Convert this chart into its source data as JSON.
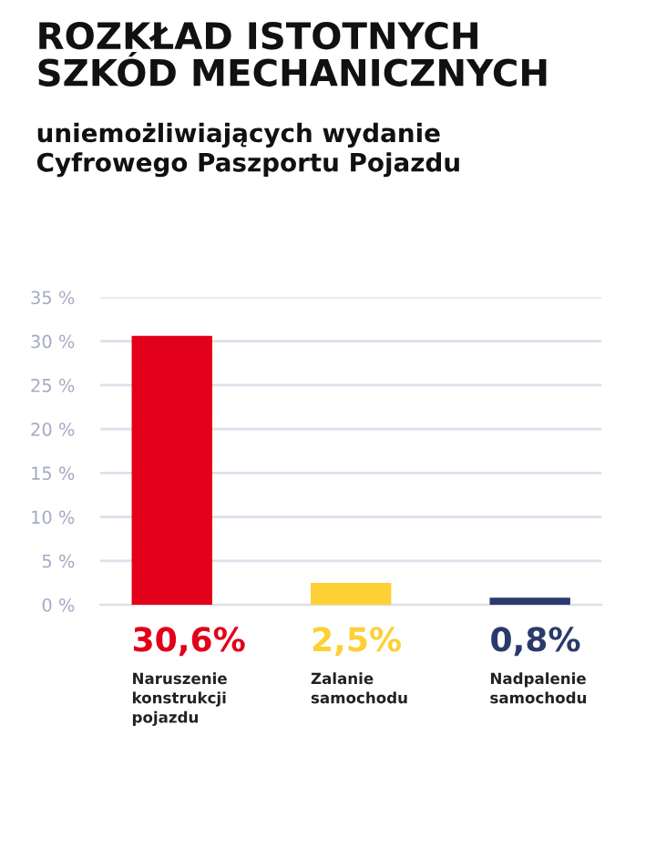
{
  "chart_data": {
    "type": "bar",
    "title": "ROZKŁAD ISTOTNYCH\nSZKÓD MECHANICZNYCH",
    "subtitle": "uniemożliwiających wydanie\nCyfrowego Paszportu Pojazdu",
    "categories": [
      "Naruszenie\nkonstrukcji\npojazdu",
      "Zalanie\nsamochodu",
      "Nadpalenie\nsamochodu"
    ],
    "values": [
      30.6,
      2.5,
      0.8
    ],
    "colors": [
      "#e2001a",
      "#fdd035",
      "#2b3a6b"
    ],
    "value_labels": [
      "30,6%",
      "2,5%",
      "0,8%"
    ],
    "ylim": [
      0,
      35
    ],
    "yticks": [
      {
        "value": 0,
        "label": "0 %"
      },
      {
        "value": 5,
        "label": "5 %"
      },
      {
        "value": 10,
        "label": "10 %"
      },
      {
        "value": 15,
        "label": "15 %"
      },
      {
        "value": 20,
        "label": "20 %"
      },
      {
        "value": 25,
        "label": "25 %"
      },
      {
        "value": 30,
        "label": "30 %"
      },
      {
        "value": 35,
        "label": "35 %"
      }
    ],
    "grid": "y"
  }
}
